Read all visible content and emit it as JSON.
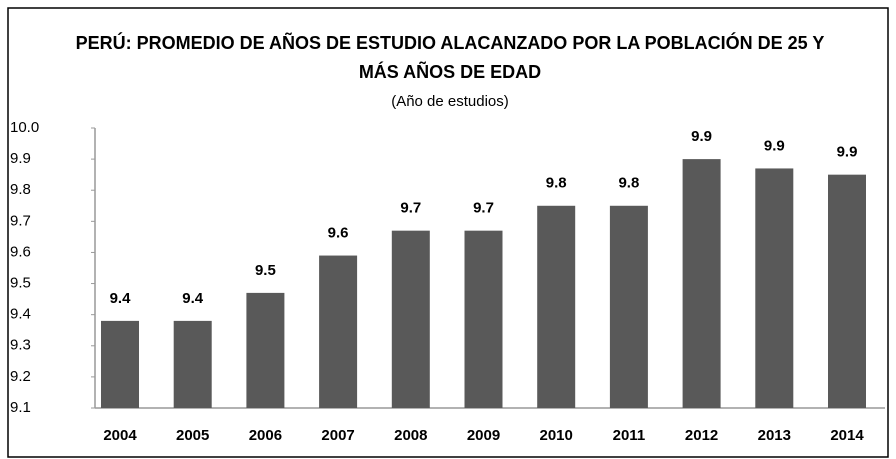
{
  "chart_data": {
    "type": "bar",
    "title": "PERÚ: PROMEDIO DE AÑOS DE ESTUDIO ALACANZADO POR LA POBLACIÓN DE 25 Y",
    "title_line2": "MÁS AÑOS DE EDAD",
    "subtitle": "(Año de estudios)",
    "categories": [
      "2004",
      "2005",
      "2006",
      "2007",
      "2008",
      "2009",
      "2010",
      "2011",
      "2012",
      "2013",
      "2014"
    ],
    "values": [
      9.38,
      9.38,
      9.47,
      9.59,
      9.67,
      9.67,
      9.75,
      9.75,
      9.9,
      9.87,
      9.85
    ],
    "value_labels": [
      "9.4",
      "9.4",
      "9.5",
      "9.6",
      "9.7",
      "9.7",
      "9.8",
      "9.8",
      "9.9",
      "9.9",
      "9.9"
    ],
    "color": "#595959",
    "ylim": [
      9.1,
      10
    ],
    "yticks": [
      9.1,
      9.2,
      9.3,
      9.4,
      9.5,
      9.6,
      9.7,
      9.8,
      9.9,
      {
        "value": 10,
        "label": "10.0"
      }
    ],
    "grid": false
  }
}
